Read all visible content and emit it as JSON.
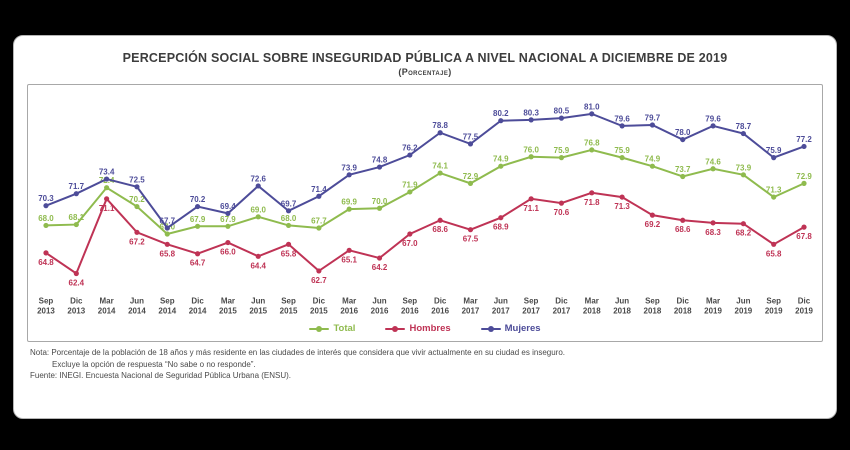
{
  "header": {
    "title": "PERCEPCIÓN SOCIAL SOBRE INSEGURIDAD PÚBLICA A NIVEL NACIONAL A DICIEMBRE DE 2019",
    "subtitle": "(Porcentaje)"
  },
  "chart_data": {
    "type": "line",
    "title": "PERCEPCIÓN SOCIAL SOBRE INSEGURIDAD PÚBLICA A NIVEL NACIONAL A DICIEMBRE DE 2019",
    "subtitle": "(Porcentaje)",
    "xlabel": "",
    "ylabel": "",
    "ylim": [
      60,
      83
    ],
    "grid": false,
    "legend_position": "bottom",
    "data_labels": true,
    "categories": [
      "Sep 2013",
      "Dic 2013",
      "Mar 2014",
      "Jun 2014",
      "Sep 2014",
      "Dic 2014",
      "Mar 2015",
      "Jun 2015",
      "Sep 2015",
      "Dic 2015",
      "Mar 2016",
      "Jun 2016",
      "Sep 2016",
      "Dic 2016",
      "Mar 2017",
      "Jun 2017",
      "Sep 2017",
      "Dic 2017",
      "Mar 2018",
      "Jun 2018",
      "Sep 2018",
      "Dic 2018",
      "Mar 2019",
      "Jun 2019",
      "Sep 2019",
      "Dic 2019"
    ],
    "series": [
      {
        "name": "Total",
        "color": "#8fbb4e",
        "values": [
          68.0,
          68.1,
          72.4,
          70.2,
          67.0,
          67.9,
          67.9,
          69.0,
          68.0,
          67.7,
          69.9,
          70.0,
          71.9,
          74.1,
          72.9,
          74.9,
          76.0,
          75.9,
          76.8,
          75.9,
          74.9,
          73.7,
          74.6,
          73.9,
          71.3,
          72.9
        ]
      },
      {
        "name": "Hombres",
        "color": "#bf3355",
        "values": [
          64.8,
          62.4,
          71.1,
          67.2,
          65.8,
          64.7,
          66.0,
          64.4,
          65.8,
          62.7,
          65.1,
          64.2,
          67.0,
          68.6,
          67.5,
          68.9,
          71.1,
          70.6,
          71.8,
          71.3,
          69.2,
          68.6,
          68.3,
          68.2,
          65.8,
          67.8
        ]
      },
      {
        "name": "Mujeres",
        "color": "#4d4c99",
        "values": [
          70.3,
          71.7,
          73.4,
          72.5,
          67.7,
          70.2,
          69.4,
          72.6,
          69.7,
          71.4,
          73.9,
          74.8,
          76.2,
          78.8,
          77.5,
          80.2,
          80.3,
          80.5,
          81.0,
          79.6,
          79.7,
          78.0,
          79.6,
          78.7,
          75.9,
          77.2
        ]
      }
    ]
  },
  "footnotes": {
    "nota": "Nota: Porcentaje de la población de 18 años y más residente en las ciudades de interés que considera que vivir actualmente en su ciudad es inseguro.",
    "nota2": "Excluye la opción de respuesta “No sabe o no responde”.",
    "fuente": "Fuente: INEGI. Encuesta Nacional de Seguridad Pública Urbana (ENSU)."
  }
}
